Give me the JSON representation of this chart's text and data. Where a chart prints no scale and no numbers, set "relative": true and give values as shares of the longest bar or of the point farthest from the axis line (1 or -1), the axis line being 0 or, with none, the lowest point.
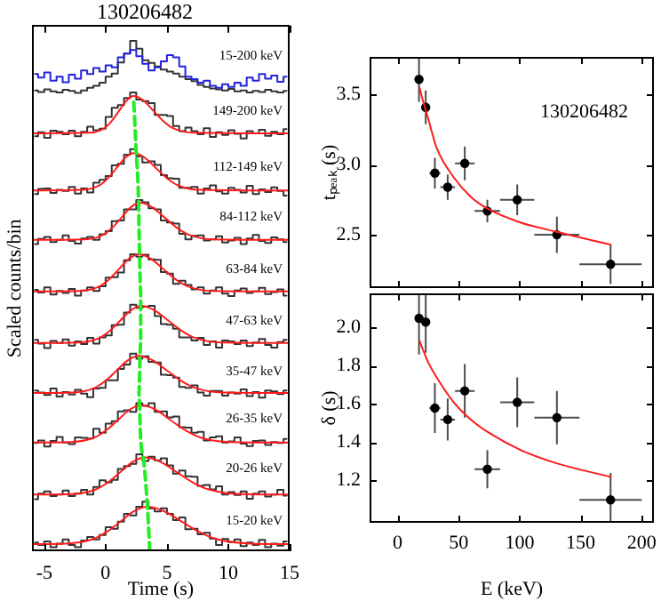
{
  "chart_data": [
    {
      "type": "step",
      "title": "130206482",
      "xlabel": "Time (s)",
      "ylabel": "Scaled counts/bin",
      "relative": true,
      "xlim": [
        -6,
        15
      ],
      "xticks": [
        -5,
        0,
        5,
        10,
        15
      ],
      "x": [
        -5.75,
        -5.25,
        -4.75,
        -4.25,
        -3.75,
        -3.25,
        -2.75,
        -2.25,
        -1.75,
        -1.25,
        -0.75,
        -0.25,
        0.25,
        0.75,
        1.25,
        1.75,
        2.25,
        2.75,
        3.25,
        3.75,
        4.25,
        4.75,
        5.25,
        5.75,
        6.25,
        6.75,
        7.25,
        7.75,
        8.25,
        8.75,
        9.25,
        9.75,
        10.25,
        10.75,
        11.25,
        11.75,
        12.25,
        12.75,
        13.25,
        13.75,
        14.25,
        14.75
      ],
      "series": [
        {
          "name": "15-200 keV",
          "color": "#333333",
          "values": [
            0.903,
            0.9,
            0.905,
            0.901,
            0.899,
            0.904,
            0.902,
            0.898,
            0.903,
            0.908,
            0.912,
            0.918,
            0.93,
            0.936,
            0.958,
            0.975,
            1,
            0.985,
            0.962,
            0.957,
            0.95,
            0.944,
            0.94,
            0.936,
            0.93,
            0.925,
            0.921,
            0.914,
            0.91,
            0.907,
            0.905,
            0.903,
            0.906,
            0.901,
            0.903,
            0.899,
            0.902,
            0.9,
            0.904,
            0.901,
            0.899,
            0.902
          ]
        },
        {
          "color": "#2222dd",
          "values": [
            0.935,
            0.928,
            0.938,
            0.922,
            0.93,
            0.919,
            0.934,
            0.926,
            0.942,
            0.935,
            0.947,
            0.94,
            0.952,
            0.948,
            0.968,
            0.975,
            0.982,
            0.97,
            0.955,
            0.942,
            0.948,
            0.96,
            0.972,
            0.968,
            0.95,
            0.93,
            0.925,
            0.918,
            0.922,
            0.912,
            0.908,
            0.915,
            0.91,
            0.918,
            0.912,
            0.928,
            0.922,
            0.935,
            0.926,
            0.932,
            0.92,
            0.93
          ]
        },
        {
          "name": "149-200 keV",
          "color": "#333333",
          "values": [
            0.813,
            0.821,
            0.81,
            0.824,
            0.822,
            0.817,
            0.824,
            0.813,
            0.822,
            0.832,
            0.825,
            0.828,
            0.851,
            0.869,
            0.874,
            0.888,
            0.899,
            0.885,
            0.882,
            0.878,
            0.855,
            0.855,
            0.853,
            0.833,
            0.823,
            0.83,
            0.823,
            0.817,
            0.829,
            0.812,
            0.821,
            0.816,
            0.825,
            0.818,
            0.809,
            0.823,
            0.819,
            0.826,
            0.814,
            0.822,
            0.817,
            0.827
          ]
        },
        {
          "name": "112-149 keV",
          "color": "#333333",
          "values": [
            0.7,
            0.71,
            0.711,
            0.702,
            0.708,
            0.706,
            0.714,
            0.701,
            0.711,
            0.703,
            0.722,
            0.728,
            0.735,
            0.756,
            0.759,
            0.777,
            0.788,
            0.774,
            0.762,
            0.764,
            0.757,
            0.737,
            0.731,
            0.73,
            0.712,
            0.712,
            0.714,
            0.701,
            0.711,
            0.717,
            0.705,
            0.701,
            0.712,
            0.708,
            0.703,
            0.716,
            0.7,
            0.709,
            0.704,
            0.713,
            0.706,
            0.697
          ]
        },
        {
          "name": "84-112 keV",
          "color": "#333333",
          "values": [
            0.602,
            0.612,
            0.616,
            0.606,
            0.61,
            0.619,
            0.608,
            0.603,
            0.613,
            0.616,
            0.61,
            0.621,
            0.627,
            0.647,
            0.648,
            0.67,
            0.67,
            0.688,
            0.684,
            0.672,
            0.67,
            0.648,
            0.644,
            0.642,
            0.622,
            0.611,
            0.618,
            0.619,
            0.609,
            0.611,
            0.617,
            0.605,
            0.609,
            0.614,
            0.602,
            0.613,
            0.62,
            0.608,
            0.604,
            0.615,
            0.611,
            0.606
          ]
        },
        {
          "name": "63-84 keV",
          "color": "#333333",
          "values": [
            0.512,
            0.507,
            0.517,
            0.503,
            0.51,
            0.506,
            0.514,
            0.501,
            0.511,
            0.517,
            0.51,
            0.519,
            0.536,
            0.537,
            0.546,
            0.57,
            0.582,
            0.577,
            0.581,
            0.572,
            0.571,
            0.547,
            0.544,
            0.524,
            0.53,
            0.522,
            0.513,
            0.517,
            0.505,
            0.511,
            0.517,
            0.505,
            0.5,
            0.511,
            0.515,
            0.506,
            0.509,
            0.516,
            0.504,
            0.508,
            0.513,
            0.501
          ]
        },
        {
          "name": "47-63 keV",
          "color": "#333333",
          "values": [
            0.414,
            0.407,
            0.398,
            0.412,
            0.408,
            0.415,
            0.403,
            0.411,
            0.406,
            0.418,
            0.407,
            0.419,
            0.423,
            0.443,
            0.444,
            0.468,
            0.483,
            0.477,
            0.479,
            0.481,
            0.461,
            0.445,
            0.444,
            0.436,
            0.419,
            0.419,
            0.413,
            0.418,
            0.404,
            0.411,
            0.399,
            0.413,
            0.411,
            0.406,
            0.413,
            0.402,
            0.409,
            0.416,
            0.404,
            0.399,
            0.41,
            0.414
          ]
        },
        {
          "name": "35-47 keV",
          "color": "#333333",
          "values": [
            0.315,
            0.311,
            0.306,
            0.319,
            0.303,
            0.312,
            0.307,
            0.316,
            0.309,
            0.302,
            0.319,
            0.32,
            0.335,
            0.335,
            0.357,
            0.366,
            0.387,
            0.377,
            0.382,
            0.371,
            0.37,
            0.346,
            0.345,
            0.34,
            0.322,
            0.32,
            0.325,
            0.311,
            0.305,
            0.314,
            0.314,
            0.305,
            0.311,
            0.309,
            0.317,
            0.304,
            0.312,
            0.301,
            0.315,
            0.313,
            0.308,
            0.315
          ]
        },
        {
          "name": "26-35 keV",
          "color": "#333333",
          "values": [
            0.212,
            0.217,
            0.205,
            0.216,
            0.224,
            0.213,
            0.21,
            0.223,
            0.222,
            0.221,
            0.24,
            0.232,
            0.25,
            0.255,
            0.274,
            0.276,
            0.273,
            0.29,
            0.285,
            0.29,
            0.273,
            0.274,
            0.262,
            0.264,
            0.243,
            0.242,
            0.232,
            0.234,
            0.217,
            0.223,
            0.225,
            0.213,
            0.215,
            0.223,
            0.211,
            0.206,
            0.216,
            0.217,
            0.208,
            0.214,
            0.212,
            0.22
          ]
        },
        {
          "name": "20-26 keV",
          "color": "#333333",
          "values": [
            0.102,
            0.113,
            0.117,
            0.108,
            0.111,
            0.119,
            0.108,
            0.113,
            0.12,
            0.111,
            0.126,
            0.139,
            0.135,
            0.14,
            0.161,
            0.167,
            0.171,
            0.19,
            0.177,
            0.185,
            0.178,
            0.182,
            0.168,
            0.152,
            0.158,
            0.147,
            0.146,
            0.128,
            0.13,
            0.121,
            0.127,
            0.111,
            0.116,
            0.11,
            0.117,
            0.103,
            0.113,
            0.117,
            0.107,
            0.111,
            0.12,
            0.109
          ]
        },
        {
          "name": "15-20 keV",
          "color": "#333333",
          "values": [
            0.017,
            0.012,
            0.019,
            0.008,
            0.015,
            0.023,
            0.012,
            0.008,
            0.021,
            0.028,
            0.023,
            0.032,
            0.047,
            0.044,
            0.058,
            0.073,
            0.07,
            0.087,
            0.097,
            0.084,
            0.078,
            0.084,
            0.073,
            0.061,
            0.066,
            0.043,
            0.044,
            0.033,
            0.036,
            0.025,
            0.012,
            0.024,
            0.018,
            0.023,
            0.01,
            0.017,
            0.012,
            0.022,
            0.008,
            0.015,
            0.011,
            0.019
          ]
        },
        {
          "type": "line",
          "color": "#ff1a1a",
          "x": [
            -6,
            -1.3,
            -0.1,
            0.5,
            1.1,
            1.7,
            2.3,
            3.1,
            3.9,
            4.7,
            5.5,
            7.1,
            15
          ],
          "values": [
            0.819,
            0.82,
            0.829,
            0.843,
            0.863,
            0.883,
            0.892,
            0.883,
            0.863,
            0.843,
            0.829,
            0.82,
            0.819
          ]
        },
        {
          "type": "line",
          "color": "#ff1a1a",
          "x": [
            -6,
            -1.9,
            -0.5,
            0.2,
            0.9,
            1.6,
            2.3,
            3.2,
            4.1,
            5.0,
            5.9,
            7.7,
            15
          ],
          "values": [
            0.707,
            0.708,
            0.717,
            0.731,
            0.751,
            0.771,
            0.78,
            0.771,
            0.751,
            0.731,
            0.717,
            0.708,
            0.707
          ]
        },
        {
          "type": "line",
          "color": "#ff1a1a",
          "x": [
            -6,
            -1.7,
            -0.2,
            0.55,
            1.3,
            2.05,
            2.8,
            3.8,
            4.8,
            5.8,
            6.8,
            8.8,
            15
          ],
          "values": [
            0.61,
            0.611,
            0.62,
            0.634,
            0.654,
            0.674,
            0.683,
            0.674,
            0.654,
            0.634,
            0.62,
            0.611,
            0.61
          ]
        },
        {
          "type": "line",
          "color": "#ff1a1a",
          "x": [
            -6,
            -2.1,
            -0.5,
            0.3,
            1.1,
            1.9,
            2.7,
            3.7,
            4.7,
            5.7,
            6.7,
            8.7,
            15
          ],
          "values": [
            0.509,
            0.51,
            0.519,
            0.533,
            0.553,
            0.573,
            0.582,
            0.573,
            0.553,
            0.533,
            0.519,
            0.51,
            0.509
          ]
        },
        {
          "type": "line",
          "color": "#ff1a1a",
          "x": [
            -6,
            -2.2,
            -0.5,
            0.35,
            1.2,
            2.05,
            2.9,
            4.0,
            5.1,
            6.2,
            7.3,
            9.5,
            15
          ],
          "values": [
            0.408,
            0.409,
            0.418,
            0.432,
            0.452,
            0.472,
            0.481,
            0.472,
            0.452,
            0.432,
            0.418,
            0.409,
            0.408
          ]
        },
        {
          "type": "line",
          "color": "#ff1a1a",
          "x": [
            -6,
            -2.7,
            -0.9,
            0,
            0.9,
            1.8,
            2.7,
            3.85,
            5.0,
            6.15,
            7.3,
            9.6,
            15
          ],
          "values": [
            0.31,
            0.311,
            0.32,
            0.334,
            0.354,
            0.374,
            0.383,
            0.374,
            0.354,
            0.334,
            0.32,
            0.311,
            0.31
          ]
        },
        {
          "type": "line",
          "color": "#ff1a1a",
          "x": [
            -6,
            -2.8,
            -0.9,
            0.05,
            1.0,
            1.95,
            2.9,
            4.1,
            5.3,
            6.5,
            7.7,
            10.1,
            15
          ],
          "values": [
            0.213,
            0.214,
            0.223,
            0.237,
            0.257,
            0.277,
            0.286,
            0.277,
            0.257,
            0.237,
            0.223,
            0.214,
            0.213
          ]
        },
        {
          "type": "line",
          "color": "#ff1a1a",
          "x": [
            -6,
            -2.8,
            -0.8,
            0.2,
            1.2,
            2.2,
            3.2,
            4.5,
            5.8,
            7.1,
            8.4,
            11.0,
            15
          ],
          "values": [
            0.111,
            0.112,
            0.121,
            0.135,
            0.155,
            0.175,
            0.184,
            0.175,
            0.155,
            0.135,
            0.121,
            0.112,
            0.111
          ]
        },
        {
          "type": "line",
          "color": "#ff1a1a",
          "x": [
            -6,
            -3.2,
            -1.0,
            0.1,
            1.2,
            2.3,
            3.4,
            4.8,
            6.2,
            7.6,
            9.0,
            11.8,
            15
          ],
          "values": [
            0.014,
            0.015,
            0.024,
            0.038,
            0.058,
            0.078,
            0.087,
            0.078,
            0.058,
            0.038,
            0.024,
            0.015,
            0.014
          ]
        },
        {
          "type": "line",
          "color": "#22ee22",
          "line_style": "dashed",
          "x": [
            3.6,
            3.43,
            3.14,
            2.86,
            2.71,
            2.86,
            2.86,
            2.76,
            2.67,
            2.48,
            2.3
          ],
          "values": [
            0,
            0.08,
            0.17,
            0.22,
            0.31,
            0.41,
            0.51,
            0.59,
            0.7,
            0.79,
            0.88
          ]
        }
      ]
    },
    {
      "type": "scatter",
      "ylabel": "tₚₑₐₖ (s)",
      "annotations": [
        "130206482"
      ],
      "xlim": [
        -23,
        210
      ],
      "xticks": [
        0,
        50,
        100,
        150,
        200
      ],
      "ylim": [
        2.12,
        3.77
      ],
      "yticks": [
        2.5,
        {
          "value": 3,
          "label": "3.0"
        },
        3.5
      ],
      "tick_labels": "y",
      "series": [
        {
          "color": "#000000",
          "marker": "circle",
          "x": [
            17.5,
            23,
            30.5,
            41,
            55,
            73.5,
            98,
            130.5,
            174.5
          ],
          "values": [
            3.61,
            3.41,
            2.94,
            2.84,
            3.01,
            2.67,
            2.75,
            2.5,
            2.29
          ],
          "errors": [
            0.16,
            0.12,
            0.11,
            0.09,
            0.12,
            0.08,
            0.11,
            0.13,
            0.14
          ],
          "xerrors": [
            2.5,
            3,
            4.5,
            6,
            8,
            10.5,
            14,
            18.5,
            25.5
          ]
        },
        {
          "type": "line",
          "color": "#ff1a1a",
          "x": [
            18,
            20,
            25,
            32,
            46,
            60,
            73,
            100,
            131,
            174.5
          ],
          "values": [
            3.55,
            3.48,
            3.33,
            3.12,
            2.91,
            2.77,
            2.69,
            2.59,
            2.52,
            2.43
          ]
        }
      ]
    },
    {
      "type": "scatter",
      "xlabel": "E (keV)",
      "ylabel": "δ (s)",
      "xlim": [
        -23,
        210
      ],
      "xticks": [
        0,
        50,
        100,
        150,
        200
      ],
      "ylim": [
        0.98,
        2.18
      ],
      "yticks": [
        1.2,
        1.4,
        1.6,
        1.8,
        {
          "value": 2,
          "label": "2.0"
        }
      ],
      "series": [
        {
          "color": "#000000",
          "marker": "circle",
          "x": [
            17.5,
            23,
            30.5,
            41,
            55,
            73.5,
            98,
            130.5,
            174.5
          ],
          "values": [
            2.05,
            2.03,
            1.58,
            1.52,
            1.67,
            1.26,
            1.61,
            1.53,
            1.1
          ],
          "errors": [
            [
              1.86,
              2.18
            ],
            [
              1.87,
              2.18
            ],
            0.13,
            0.11,
            0.14,
            0.1,
            0.13,
            0.14,
            [
              0.98,
              1.24
            ]
          ],
          "xerrors": [
            2.5,
            3,
            4.5,
            6,
            8,
            10.5,
            14,
            18.5,
            25.5
          ]
        },
        {
          "type": "line",
          "color": "#ff1a1a",
          "x": [
            18,
            25,
            33,
            46,
            60,
            75,
            101,
            131,
            174.5
          ],
          "values": [
            1.93,
            1.82,
            1.73,
            1.61,
            1.52,
            1.45,
            1.36,
            1.29,
            1.22
          ]
        }
      ]
    }
  ]
}
